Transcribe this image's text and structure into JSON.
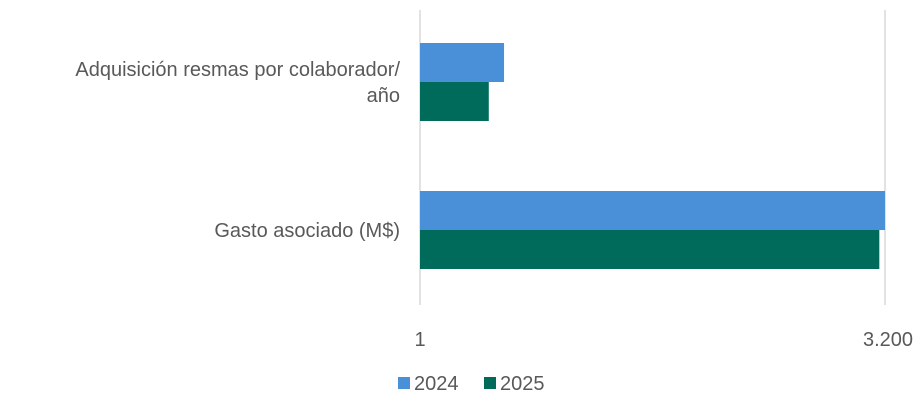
{
  "chart_data": {
    "type": "bar",
    "orientation": "horizontal",
    "scale": "log",
    "categories": [
      "Adquisición resmas por colaborador/ año",
      "Gasto asociado  (M$)"
    ],
    "category_lines": [
      [
        "Adquisición resmas por colaborador/",
        "año"
      ],
      [
        "Gasto asociado  (M$)"
      ]
    ],
    "series": [
      {
        "name": "2024",
        "color": "#4a90d9",
        "values": [
          4.3,
          3200
        ]
      },
      {
        "name": "2025",
        "color": "#006b5b",
        "values": [
          3.3,
          2900
        ]
      }
    ],
    "xlim": [
      1,
      3200
    ],
    "xticks": [
      {
        "value": 1,
        "label": "1"
      },
      {
        "value": 3200,
        "label": "3.200"
      }
    ],
    "grid": true,
    "legend": "bottom"
  }
}
